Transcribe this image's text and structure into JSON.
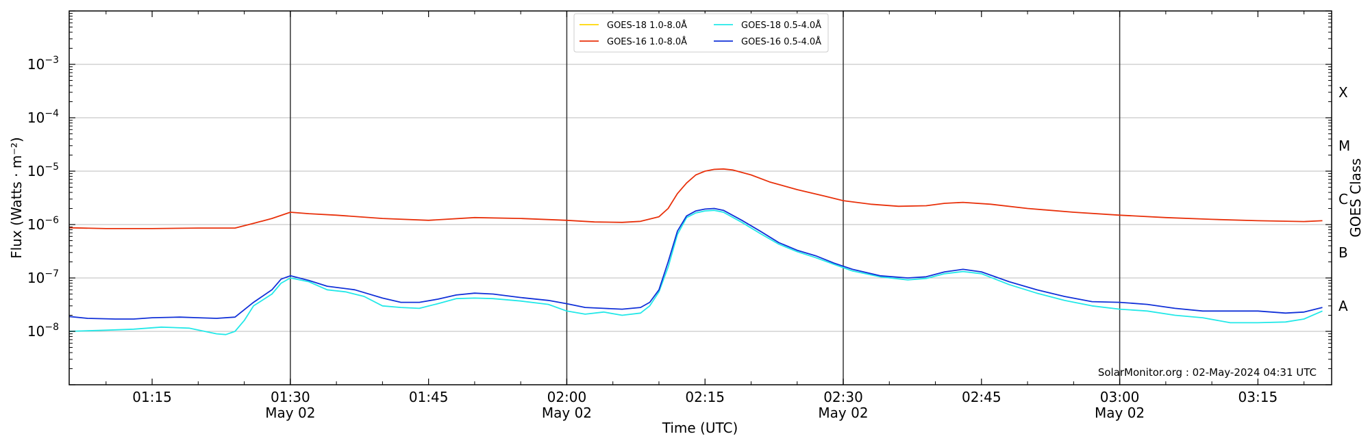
{
  "chart_data": {
    "type": "line",
    "xlabel": "Time (UTC)",
    "ylabel": "Flux (Watts · m⁻²)",
    "right_label": "GOES Class",
    "scale_y": "log",
    "xlim": [
      "01:06",
      "03:23"
    ],
    "ylim": [
      1e-09,
      0.01
    ],
    "grid": "horizontal",
    "legend_position": "top-center",
    "footer": "SolarMonitor.org : 02-May-2024 04:31 UTC",
    "x_ticks": [
      {
        "time": "01:15",
        "label": "01:15",
        "sub": ""
      },
      {
        "time": "01:30",
        "label": "01:30",
        "sub": "May 02"
      },
      {
        "time": "01:45",
        "label": "01:45",
        "sub": ""
      },
      {
        "time": "02:00",
        "label": "02:00",
        "sub": "May 02"
      },
      {
        "time": "02:15",
        "label": "02:15",
        "sub": ""
      },
      {
        "time": "02:30",
        "label": "02:30",
        "sub": "May 02"
      },
      {
        "time": "02:45",
        "label": "02:45",
        "sub": ""
      },
      {
        "time": "03:00",
        "label": "03:00",
        "sub": "May 02"
      },
      {
        "time": "03:15",
        "label": "03:15",
        "sub": ""
      }
    ],
    "vlines": [
      "01:30",
      "02:00",
      "02:30",
      "03:00"
    ],
    "y_ticks": [
      {
        "value": 1e-08,
        "base": "10",
        "exp": "−8"
      },
      {
        "value": 1e-07,
        "base": "10",
        "exp": "−7"
      },
      {
        "value": 1e-06,
        "base": "10",
        "exp": "−6"
      },
      {
        "value": 1e-05,
        "base": "10",
        "exp": "−5"
      },
      {
        "value": 0.0001,
        "base": "10",
        "exp": "−4"
      },
      {
        "value": 0.001,
        "base": "10",
        "exp": "−3"
      }
    ],
    "goes_classes": [
      {
        "label": "A",
        "value": 3e-08
      },
      {
        "label": "B",
        "value": 3e-07
      },
      {
        "label": "C",
        "value": 3e-06
      },
      {
        "label": "M",
        "value": 3e-05
      },
      {
        "label": "X",
        "value": 0.0003
      }
    ],
    "series": [
      {
        "name": "GOES-18 1.0-8.0Å",
        "color": "#FFD700",
        "points": []
      },
      {
        "name": "GOES-16 1.0-8.0Å",
        "color": "#E8300A",
        "points": [
          [
            "01:06",
            8.7e-07
          ],
          [
            "01:10",
            8.4e-07
          ],
          [
            "01:15",
            8.4e-07
          ],
          [
            "01:20",
            8.6e-07
          ],
          [
            "01:24",
            8.6e-07
          ],
          [
            "01:26",
            1.05e-06
          ],
          [
            "01:28",
            1.3e-06
          ],
          [
            "01:30",
            1.7e-06
          ],
          [
            "01:32",
            1.6e-06
          ],
          [
            "01:35",
            1.5e-06
          ],
          [
            "01:40",
            1.3e-06
          ],
          [
            "01:45",
            1.2e-06
          ],
          [
            "01:50",
            1.35e-06
          ],
          [
            "01:55",
            1.3e-06
          ],
          [
            "02:00",
            1.2e-06
          ],
          [
            "02:03",
            1.12e-06
          ],
          [
            "02:06",
            1.1e-06
          ],
          [
            "02:08",
            1.15e-06
          ],
          [
            "02:10",
            1.4e-06
          ],
          [
            "02:11",
            2e-06
          ],
          [
            "02:12",
            3.8e-06
          ],
          [
            "02:13",
            6e-06
          ],
          [
            "02:14",
            8.5e-06
          ],
          [
            "02:15",
            1e-05
          ],
          [
            "02:16",
            1.08e-05
          ],
          [
            "02:17",
            1.1e-05
          ],
          [
            "02:18",
            1.05e-05
          ],
          [
            "02:20",
            8.5e-06
          ],
          [
            "02:22",
            6.3e-06
          ],
          [
            "02:25",
            4.5e-06
          ],
          [
            "02:28",
            3.4e-06
          ],
          [
            "02:30",
            2.8e-06
          ],
          [
            "02:33",
            2.4e-06
          ],
          [
            "02:36",
            2.2e-06
          ],
          [
            "02:39",
            2.25e-06
          ],
          [
            "02:41",
            2.5e-06
          ],
          [
            "02:43",
            2.6e-06
          ],
          [
            "02:46",
            2.4e-06
          ],
          [
            "02:50",
            2e-06
          ],
          [
            "02:55",
            1.7e-06
          ],
          [
            "03:00",
            1.5e-06
          ],
          [
            "03:05",
            1.35e-06
          ],
          [
            "03:10",
            1.25e-06
          ],
          [
            "03:15",
            1.18e-06
          ],
          [
            "03:20",
            1.14e-06
          ],
          [
            "03:22",
            1.18e-06
          ]
        ]
      },
      {
        "name": "GOES-18 0.5-4.0Å",
        "color": "#22E8E8",
        "points": [
          [
            "01:06",
            1e-08
          ],
          [
            "01:10",
            1.05e-08
          ],
          [
            "01:13",
            1.1e-08
          ],
          [
            "01:16",
            1.2e-08
          ],
          [
            "01:19",
            1.15e-08
          ],
          [
            "01:22",
            9e-09
          ],
          [
            "01:23",
            8.7e-09
          ],
          [
            "01:24",
            1e-08
          ],
          [
            "01:25",
            1.6e-08
          ],
          [
            "01:26",
            3e-08
          ],
          [
            "01:28",
            5e-08
          ],
          [
            "01:29",
            8e-08
          ],
          [
            "01:30",
            1e-07
          ],
          [
            "01:32",
            8.5e-08
          ],
          [
            "01:34",
            6e-08
          ],
          [
            "01:36",
            5.5e-08
          ],
          [
            "01:38",
            4.5e-08
          ],
          [
            "01:40",
            3e-08
          ],
          [
            "01:42",
            2.8e-08
          ],
          [
            "01:44",
            2.7e-08
          ],
          [
            "01:46",
            3.3e-08
          ],
          [
            "01:48",
            4.1e-08
          ],
          [
            "01:50",
            4.2e-08
          ],
          [
            "01:52",
            4.1e-08
          ],
          [
            "01:55",
            3.7e-08
          ],
          [
            "01:58",
            3.2e-08
          ],
          [
            "02:00",
            2.4e-08
          ],
          [
            "02:02",
            2.1e-08
          ],
          [
            "02:04",
            2.3e-08
          ],
          [
            "02:06",
            2e-08
          ],
          [
            "02:08",
            2.2e-08
          ],
          [
            "02:09",
            3e-08
          ],
          [
            "02:10",
            5.5e-08
          ],
          [
            "02:11",
            1.6e-07
          ],
          [
            "02:12",
            6.5e-07
          ],
          [
            "02:13",
            1.35e-06
          ],
          [
            "02:14",
            1.65e-06
          ],
          [
            "02:15",
            1.8e-06
          ],
          [
            "02:16",
            1.85e-06
          ],
          [
            "02:17",
            1.7e-06
          ],
          [
            "02:19",
            1.1e-06
          ],
          [
            "02:21",
            6.8e-07
          ],
          [
            "02:23",
            4.3e-07
          ],
          [
            "02:25",
            3.1e-07
          ],
          [
            "02:27",
            2.4e-07
          ],
          [
            "02:29",
            1.8e-07
          ],
          [
            "02:31",
            1.35e-07
          ],
          [
            "02:34",
            1.05e-07
          ],
          [
            "02:37",
            9.2e-08
          ],
          [
            "02:39",
            9.8e-08
          ],
          [
            "02:41",
            1.2e-07
          ],
          [
            "02:43",
            1.32e-07
          ],
          [
            "02:45",
            1.2e-07
          ],
          [
            "02:48",
            7.5e-08
          ],
          [
            "02:51",
            5.2e-08
          ],
          [
            "02:54",
            3.8e-08
          ],
          [
            "02:57",
            3e-08
          ],
          [
            "03:00",
            2.6e-08
          ],
          [
            "03:03",
            2.4e-08
          ],
          [
            "03:06",
            2e-08
          ],
          [
            "03:09",
            1.8e-08
          ],
          [
            "03:12",
            1.45e-08
          ],
          [
            "03:15",
            1.45e-08
          ],
          [
            "03:18",
            1.5e-08
          ],
          [
            "03:20",
            1.7e-08
          ],
          [
            "03:22",
            2.4e-08
          ]
        ]
      },
      {
        "name": "GOES-16 0.5-4.0Å",
        "color": "#1030D8",
        "points": [
          [
            "01:06",
            1.9e-08
          ],
          [
            "01:08",
            1.75e-08
          ],
          [
            "01:11",
            1.7e-08
          ],
          [
            "01:13",
            1.7e-08
          ],
          [
            "01:15",
            1.8e-08
          ],
          [
            "01:18",
            1.85e-08
          ],
          [
            "01:20",
            1.8e-08
          ],
          [
            "01:22",
            1.75e-08
          ],
          [
            "01:24",
            1.85e-08
          ],
          [
            "01:26",
            3.5e-08
          ],
          [
            "01:28",
            6e-08
          ],
          [
            "01:29",
            9.5e-08
          ],
          [
            "01:30",
            1.1e-07
          ],
          [
            "01:32",
            9e-08
          ],
          [
            "01:34",
            7e-08
          ],
          [
            "01:37",
            6e-08
          ],
          [
            "01:40",
            4.2e-08
          ],
          [
            "01:42",
            3.5e-08
          ],
          [
            "01:44",
            3.5e-08
          ],
          [
            "01:46",
            4e-08
          ],
          [
            "01:48",
            4.8e-08
          ],
          [
            "01:50",
            5.2e-08
          ],
          [
            "01:52",
            5e-08
          ],
          [
            "01:55",
            4.3e-08
          ],
          [
            "01:58",
            3.8e-08
          ],
          [
            "02:00",
            3.3e-08
          ],
          [
            "02:02",
            2.8e-08
          ],
          [
            "02:04",
            2.7e-08
          ],
          [
            "02:06",
            2.6e-08
          ],
          [
            "02:08",
            2.8e-08
          ],
          [
            "02:09",
            3.5e-08
          ],
          [
            "02:10",
            6e-08
          ],
          [
            "02:11",
            2e-07
          ],
          [
            "02:12",
            7.5e-07
          ],
          [
            "02:13",
            1.45e-06
          ],
          [
            "02:14",
            1.8e-06
          ],
          [
            "02:15",
            1.95e-06
          ],
          [
            "02:16",
            2e-06
          ],
          [
            "02:17",
            1.85e-06
          ],
          [
            "02:19",
            1.2e-06
          ],
          [
            "02:21",
            7.5e-07
          ],
          [
            "02:23",
            4.6e-07
          ],
          [
            "02:25",
            3.3e-07
          ],
          [
            "02:27",
            2.6e-07
          ],
          [
            "02:29",
            1.9e-07
          ],
          [
            "02:31",
            1.45e-07
          ],
          [
            "02:34",
            1.1e-07
          ],
          [
            "02:37",
            1e-07
          ],
          [
            "02:39",
            1.05e-07
          ],
          [
            "02:41",
            1.3e-07
          ],
          [
            "02:43",
            1.45e-07
          ],
          [
            "02:45",
            1.3e-07
          ],
          [
            "02:48",
            8.5e-08
          ],
          [
            "02:51",
            6e-08
          ],
          [
            "02:54",
            4.5e-08
          ],
          [
            "02:57",
            3.6e-08
          ],
          [
            "03:00",
            3.5e-08
          ],
          [
            "03:03",
            3.2e-08
          ],
          [
            "03:06",
            2.7e-08
          ],
          [
            "03:09",
            2.4e-08
          ],
          [
            "03:12",
            2.4e-08
          ],
          [
            "03:15",
            2.4e-08
          ],
          [
            "03:18",
            2.2e-08
          ],
          [
            "03:20",
            2.3e-08
          ],
          [
            "03:22",
            2.8e-08
          ]
        ]
      }
    ]
  }
}
